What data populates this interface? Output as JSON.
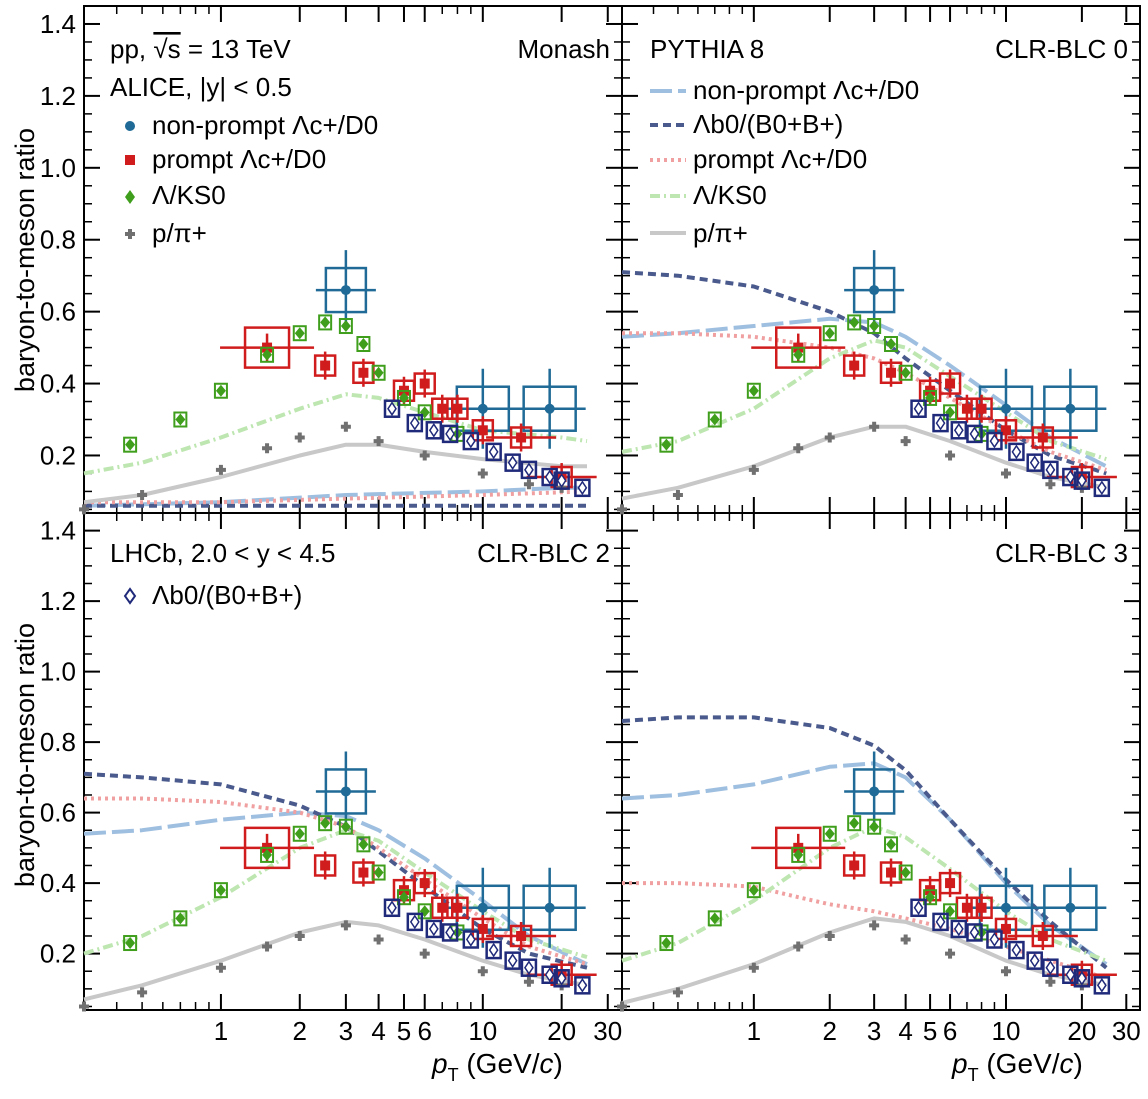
{
  "figure": {
    "ylabel": "baryon-to-meson ratio",
    "xlabel_main": "p",
    "xlabel_sub": "T",
    "xlabel_units": " (GeV/",
    "xlabel_c": "c",
    "xlabel_close": ")",
    "x_tick_labels": [
      "1",
      "2",
      "3",
      "4",
      "5",
      "6",
      "10",
      "20",
      "30"
    ],
    "y_tick_labels": [
      "0.2",
      "0.4",
      "0.6",
      "0.8",
      "1.0",
      "1.2",
      "1.4"
    ]
  },
  "legend_left": {
    "system": "pp, ",
    "sqrt_s": "√s",
    "energy": " = 13 TeV",
    "experiment": "ALICE,  |y| < 0.5",
    "entries": [
      {
        "text": "non-prompt Λc+/D0",
        "color": "#1f6a96"
      },
      {
        "text": "prompt Λc+/D0",
        "color": "#d01c1c"
      },
      {
        "text": "Λ/KS0",
        "color": "#3f9e1c"
      },
      {
        "text": "p/π+",
        "color": "#707070"
      }
    ]
  },
  "legend_right": {
    "generator": "PYTHIA 8",
    "entries": [
      {
        "text": "non-prompt Λc+/D0",
        "color": "#9fbfe0",
        "style": "long-dash"
      },
      {
        "text": "Λb0/(B0+B+)",
        "color": "#4a5a8c",
        "style": "short-dash"
      },
      {
        "text": "prompt Λc+/D0",
        "color": "#f0a0a0",
        "style": "dotted"
      },
      {
        "text": "Λ/KS0",
        "color": "#bde6b0",
        "style": "dash-dot"
      },
      {
        "text": "p/π+",
        "color": "#c8c8c8",
        "style": "solid"
      }
    ]
  },
  "legend_lhcb": {
    "experiment": "LHCb,  2.0 < y < 4.5",
    "entry": "Λb0/(B0+B+)",
    "color": "#202a7a"
  },
  "chart_data": [
    {
      "type": "scatter",
      "panel": "Monash",
      "xscale": "log",
      "xlim": [
        0.3,
        34
      ],
      "ylim": [
        0.04,
        1.45
      ],
      "series": [
        {
          "name": "non-prompt Λc+/D0",
          "x": [
            3,
            10,
            18
          ],
          "y": [
            0.66,
            0.33,
            0.33
          ]
        },
        {
          "name": "prompt Λc+/D0",
          "x": [
            1.5,
            2.5,
            3.5,
            5,
            6,
            7,
            8,
            10,
            14,
            20
          ],
          "y": [
            0.5,
            0.45,
            0.43,
            0.38,
            0.4,
            0.33,
            0.33,
            0.27,
            0.25,
            0.14
          ]
        },
        {
          "name": "Λ/KS0",
          "x": [
            0.45,
            0.7,
            1,
            1.5,
            2,
            2.5,
            3,
            3.5,
            4,
            5,
            6,
            8
          ],
          "y": [
            0.23,
            0.3,
            0.38,
            0.48,
            0.54,
            0.57,
            0.56,
            0.51,
            0.43,
            0.36,
            0.32,
            0.26
          ]
        },
        {
          "name": "p/π+",
          "x": [
            0.3,
            0.5,
            1,
            1.5,
            2,
            3,
            4,
            6,
            10,
            15,
            20
          ],
          "y": [
            0.05,
            0.09,
            0.16,
            0.22,
            0.25,
            0.28,
            0.24,
            0.2,
            0.15,
            0.12,
            0.11
          ]
        },
        {
          "name": "Λb0/(B0+B+) LHCb",
          "x": [
            4.5,
            5.5,
            6.5,
            7.5,
            9,
            11,
            13,
            15,
            18,
            20,
            24
          ],
          "y": [
            0.33,
            0.29,
            0.27,
            0.26,
            0.24,
            0.21,
            0.18,
            0.16,
            0.14,
            0.13,
            0.11
          ]
        },
        {
          "name": "PYTHIA non-prompt Λc+/D0",
          "x": [
            0.3,
            1,
            3,
            10,
            20,
            25
          ],
          "y": [
            0.06,
            0.07,
            0.09,
            0.1,
            0.11,
            0.11
          ]
        },
        {
          "name": "PYTHIA Λb0/(B0+B+)",
          "x": [
            0.3,
            1,
            3,
            10,
            25
          ],
          "y": [
            0.06,
            0.06,
            0.06,
            0.06,
            0.06
          ]
        },
        {
          "name": "PYTHIA prompt Λc+/D0",
          "x": [
            0.3,
            1,
            3,
            10,
            25
          ],
          "y": [
            0.07,
            0.07,
            0.08,
            0.09,
            0.1
          ]
        },
        {
          "name": "PYTHIA Λ/KS0",
          "x": [
            0.3,
            0.5,
            1,
            2,
            3,
            4,
            6,
            10,
            20,
            25
          ],
          "y": [
            0.15,
            0.18,
            0.25,
            0.33,
            0.37,
            0.36,
            0.32,
            0.27,
            0.25,
            0.24
          ]
        },
        {
          "name": "PYTHIA p/π+",
          "x": [
            0.3,
            0.5,
            1,
            2,
            3,
            4,
            6,
            10,
            20,
            25
          ],
          "y": [
            0.07,
            0.09,
            0.14,
            0.2,
            0.23,
            0.23,
            0.21,
            0.19,
            0.17,
            0.17
          ]
        }
      ]
    },
    {
      "type": "scatter",
      "panel": "CLR-BLC 0",
      "xscale": "log",
      "xlim": [
        0.3,
        34
      ],
      "ylim": [
        0.04,
        1.45
      ],
      "series": [
        {
          "name": "non-prompt Λc+/D0",
          "x": [
            3,
            10,
            18
          ],
          "y": [
            0.66,
            0.33,
            0.33
          ]
        },
        {
          "name": "prompt Λc+/D0",
          "x": [
            1.5,
            2.5,
            3.5,
            5,
            6,
            7,
            8,
            10,
            14,
            20
          ],
          "y": [
            0.5,
            0.45,
            0.43,
            0.38,
            0.4,
            0.33,
            0.33,
            0.27,
            0.25,
            0.14
          ]
        },
        {
          "name": "Λ/KS0",
          "x": [
            0.45,
            0.7,
            1,
            1.5,
            2,
            2.5,
            3,
            3.5,
            4,
            5,
            6,
            8
          ],
          "y": [
            0.23,
            0.3,
            0.38,
            0.48,
            0.54,
            0.57,
            0.56,
            0.51,
            0.43,
            0.36,
            0.32,
            0.26
          ]
        },
        {
          "name": "p/π+",
          "x": [
            0.3,
            0.5,
            1,
            1.5,
            2,
            3,
            4,
            6,
            10,
            15,
            20
          ],
          "y": [
            0.05,
            0.09,
            0.16,
            0.22,
            0.25,
            0.28,
            0.24,
            0.2,
            0.15,
            0.12,
            0.11
          ]
        },
        {
          "name": "Λb0/(B0+B+) LHCb",
          "x": [
            4.5,
            5.5,
            6.5,
            7.5,
            9,
            11,
            13,
            15,
            18,
            20,
            24
          ],
          "y": [
            0.33,
            0.29,
            0.27,
            0.26,
            0.24,
            0.21,
            0.18,
            0.16,
            0.14,
            0.13,
            0.11
          ]
        },
        {
          "name": "PYTHIA non-prompt Λc+/D0",
          "x": [
            0.3,
            0.5,
            1,
            2,
            3,
            4,
            6,
            10,
            15,
            25
          ],
          "y": [
            0.53,
            0.54,
            0.56,
            0.58,
            0.57,
            0.53,
            0.45,
            0.34,
            0.25,
            0.17
          ]
        },
        {
          "name": "PYTHIA Λb0/(B0+B+)",
          "x": [
            0.3,
            0.5,
            1,
            2,
            3,
            4,
            6,
            10,
            15,
            25
          ],
          "y": [
            0.71,
            0.7,
            0.67,
            0.6,
            0.54,
            0.47,
            0.38,
            0.27,
            0.2,
            0.15
          ]
        },
        {
          "name": "PYTHIA prompt Λc+/D0",
          "x": [
            0.3,
            0.5,
            1,
            2,
            3,
            4,
            6,
            10,
            15,
            25
          ],
          "y": [
            0.54,
            0.54,
            0.53,
            0.5,
            0.47,
            0.43,
            0.36,
            0.27,
            0.21,
            0.16
          ]
        },
        {
          "name": "PYTHIA Λ/KS0",
          "x": [
            0.3,
            0.5,
            1,
            2,
            3,
            4,
            6,
            10,
            15,
            25
          ],
          "y": [
            0.21,
            0.24,
            0.33,
            0.47,
            0.52,
            0.5,
            0.42,
            0.32,
            0.24,
            0.19
          ]
        },
        {
          "name": "PYTHIA p/π+",
          "x": [
            0.3,
            0.5,
            1,
            2,
            3,
            4,
            6,
            10,
            15,
            25
          ],
          "y": [
            0.08,
            0.11,
            0.17,
            0.25,
            0.28,
            0.28,
            0.24,
            0.18,
            0.14,
            0.11
          ]
        }
      ]
    },
    {
      "type": "scatter",
      "panel": "CLR-BLC 2",
      "xscale": "log",
      "xlim": [
        0.3,
        34
      ],
      "ylim": [
        0.04,
        1.45
      ],
      "series": [
        {
          "name": "non-prompt Λc+/D0",
          "x": [
            3,
            10,
            18
          ],
          "y": [
            0.66,
            0.33,
            0.33
          ]
        },
        {
          "name": "prompt Λc+/D0",
          "x": [
            1.5,
            2.5,
            3.5,
            5,
            6,
            7,
            8,
            10,
            14,
            20
          ],
          "y": [
            0.5,
            0.45,
            0.43,
            0.38,
            0.4,
            0.33,
            0.33,
            0.27,
            0.25,
            0.14
          ]
        },
        {
          "name": "Λ/KS0",
          "x": [
            0.45,
            0.7,
            1,
            1.5,
            2,
            2.5,
            3,
            3.5,
            4,
            5,
            6,
            8
          ],
          "y": [
            0.23,
            0.3,
            0.38,
            0.48,
            0.54,
            0.57,
            0.56,
            0.51,
            0.43,
            0.36,
            0.32,
            0.26
          ]
        },
        {
          "name": "p/π+",
          "x": [
            0.3,
            0.5,
            1,
            1.5,
            2,
            3,
            4,
            6,
            10,
            15,
            20
          ],
          "y": [
            0.05,
            0.09,
            0.16,
            0.22,
            0.25,
            0.28,
            0.24,
            0.2,
            0.15,
            0.12,
            0.11
          ]
        },
        {
          "name": "Λb0/(B0+B+) LHCb",
          "x": [
            4.5,
            5.5,
            6.5,
            7.5,
            9,
            11,
            13,
            15,
            18,
            20,
            24
          ],
          "y": [
            0.33,
            0.29,
            0.27,
            0.26,
            0.24,
            0.21,
            0.18,
            0.16,
            0.14,
            0.13,
            0.11
          ]
        },
        {
          "name": "PYTHIA non-prompt Λc+/D0",
          "x": [
            0.3,
            0.5,
            1,
            2,
            3,
            4,
            6,
            10,
            15,
            25
          ],
          "y": [
            0.54,
            0.55,
            0.58,
            0.6,
            0.59,
            0.55,
            0.47,
            0.35,
            0.25,
            0.17
          ]
        },
        {
          "name": "PYTHIA Λb0/(B0+B+)",
          "x": [
            0.3,
            0.5,
            1,
            2,
            3,
            4,
            6,
            10,
            15,
            25
          ],
          "y": [
            0.71,
            0.7,
            0.68,
            0.62,
            0.56,
            0.49,
            0.39,
            0.27,
            0.2,
            0.16
          ]
        },
        {
          "name": "PYTHIA prompt Λc+/D0",
          "x": [
            0.3,
            0.5,
            1,
            2,
            3,
            4,
            6,
            10,
            15,
            25
          ],
          "y": [
            0.64,
            0.64,
            0.63,
            0.6,
            0.56,
            0.5,
            0.41,
            0.3,
            0.22,
            0.17
          ]
        },
        {
          "name": "PYTHIA Λ/KS0",
          "x": [
            0.3,
            0.5,
            1,
            2,
            3,
            4,
            6,
            10,
            15,
            25
          ],
          "y": [
            0.2,
            0.25,
            0.36,
            0.5,
            0.55,
            0.52,
            0.43,
            0.32,
            0.24,
            0.19
          ]
        },
        {
          "name": "PYTHIA p/π+",
          "x": [
            0.3,
            0.5,
            1,
            2,
            3,
            4,
            6,
            10,
            15,
            25
          ],
          "y": [
            0.07,
            0.11,
            0.18,
            0.26,
            0.29,
            0.28,
            0.24,
            0.18,
            0.14,
            0.11
          ]
        }
      ]
    },
    {
      "type": "scatter",
      "panel": "CLR-BLC 3",
      "xscale": "log",
      "xlim": [
        0.3,
        34
      ],
      "ylim": [
        0.04,
        1.45
      ],
      "series": [
        {
          "name": "non-prompt Λc+/D0",
          "x": [
            3,
            10,
            18
          ],
          "y": [
            0.66,
            0.33,
            0.33
          ]
        },
        {
          "name": "prompt Λc+/D0",
          "x": [
            1.5,
            2.5,
            3.5,
            5,
            6,
            7,
            8,
            10,
            14,
            20
          ],
          "y": [
            0.5,
            0.45,
            0.43,
            0.38,
            0.4,
            0.33,
            0.33,
            0.27,
            0.25,
            0.14
          ]
        },
        {
          "name": "Λ/KS0",
          "x": [
            0.45,
            0.7,
            1,
            1.5,
            2,
            2.5,
            3,
            3.5,
            4,
            5,
            6,
            8
          ],
          "y": [
            0.23,
            0.3,
            0.38,
            0.48,
            0.54,
            0.57,
            0.56,
            0.51,
            0.43,
            0.36,
            0.32,
            0.26
          ]
        },
        {
          "name": "p/π+",
          "x": [
            0.3,
            0.5,
            1,
            1.5,
            2,
            3,
            4,
            6,
            10,
            15,
            20
          ],
          "y": [
            0.05,
            0.09,
            0.16,
            0.22,
            0.25,
            0.28,
            0.24,
            0.2,
            0.15,
            0.12,
            0.11
          ]
        },
        {
          "name": "Λb0/(B0+B+) LHCb",
          "x": [
            4.5,
            5.5,
            6.5,
            7.5,
            9,
            11,
            13,
            15,
            18,
            20,
            24
          ],
          "y": [
            0.33,
            0.29,
            0.27,
            0.26,
            0.24,
            0.21,
            0.18,
            0.16,
            0.14,
            0.13,
            0.11
          ]
        },
        {
          "name": "PYTHIA non-prompt Λc+/D0",
          "x": [
            0.3,
            0.5,
            1,
            2,
            3,
            4,
            6,
            10,
            15,
            25
          ],
          "y": [
            0.64,
            0.65,
            0.68,
            0.73,
            0.74,
            0.7,
            0.58,
            0.4,
            0.28,
            0.17
          ]
        },
        {
          "name": "PYTHIA Λb0/(B0+B+)",
          "x": [
            0.3,
            0.5,
            1,
            2,
            3,
            4,
            6,
            10,
            15,
            25
          ],
          "y": [
            0.86,
            0.87,
            0.87,
            0.84,
            0.79,
            0.72,
            0.58,
            0.41,
            0.29,
            0.16
          ]
        },
        {
          "name": "PYTHIA prompt Λc+/D0",
          "x": [
            0.3,
            0.5,
            1,
            1.5,
            2,
            3,
            4,
            6,
            10,
            15,
            25
          ],
          "y": [
            0.4,
            0.4,
            0.39,
            0.36,
            0.34,
            0.32,
            0.3,
            0.27,
            0.22,
            0.18,
            0.13
          ]
        },
        {
          "name": "PYTHIA Λ/KS0",
          "x": [
            0.3,
            0.5,
            1,
            2,
            3,
            4,
            6,
            10,
            15,
            25
          ],
          "y": [
            0.18,
            0.23,
            0.35,
            0.5,
            0.56,
            0.53,
            0.44,
            0.32,
            0.24,
            0.18
          ]
        },
        {
          "name": "PYTHIA p/π+",
          "x": [
            0.3,
            0.5,
            1,
            2,
            3,
            4,
            6,
            10,
            15,
            25
          ],
          "y": [
            0.06,
            0.1,
            0.17,
            0.26,
            0.3,
            0.29,
            0.25,
            0.18,
            0.14,
            0.11
          ]
        }
      ]
    }
  ]
}
